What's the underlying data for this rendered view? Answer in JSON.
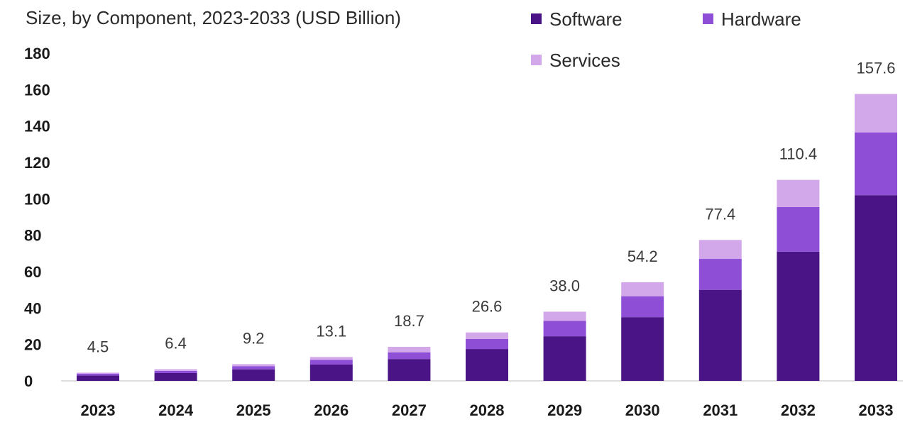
{
  "chart_data": {
    "type": "bar",
    "stacked": true,
    "subtitle": "Size, by Component, 2023-2033 (USD Billion)",
    "categories": [
      "2023",
      "2024",
      "2025",
      "2026",
      "2027",
      "2028",
      "2029",
      "2030",
      "2031",
      "2032",
      "2033"
    ],
    "series": [
      {
        "name": "Software",
        "color": "#4a1486",
        "values": [
          3.0,
          4.3,
          6.3,
          9.0,
          12.0,
          17.5,
          24.5,
          35.0,
          50.0,
          71.0,
          102.0
        ]
      },
      {
        "name": "Hardware",
        "color": "#8e4fd6",
        "values": [
          0.9,
          1.2,
          1.8,
          2.5,
          3.7,
          5.5,
          8.5,
          11.5,
          17.0,
          24.5,
          34.5
        ]
      },
      {
        "name": "Services",
        "color": "#d2a8ea",
        "values": [
          0.6,
          0.9,
          1.1,
          1.6,
          3.0,
          3.6,
          5.0,
          7.7,
          10.4,
          14.9,
          21.1
        ]
      }
    ],
    "totals": [
      "4.5",
      "6.4",
      "9.2",
      "13.1",
      "18.7",
      "26.6",
      "38.0",
      "54.2",
      "77.4",
      "110.4",
      "157.6"
    ],
    "yticks": [
      "0",
      "20",
      "40",
      "60",
      "80",
      "100",
      "120",
      "140",
      "160",
      "180"
    ],
    "ylim": [
      0,
      180
    ],
    "grid": false,
    "legend_position": "top-right"
  }
}
